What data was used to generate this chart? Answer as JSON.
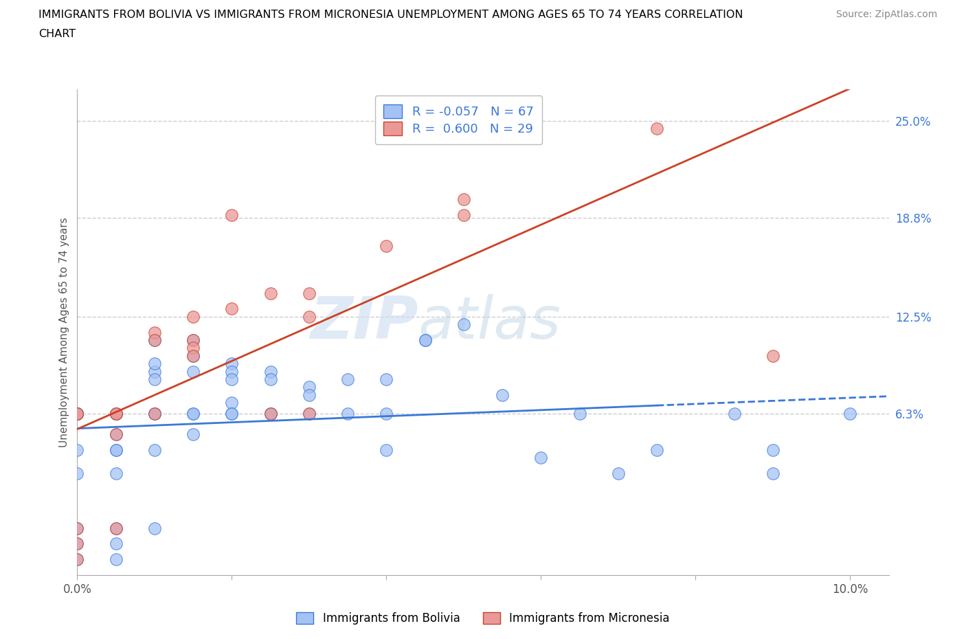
{
  "title_line1": "IMMIGRANTS FROM BOLIVIA VS IMMIGRANTS FROM MICRONESIA UNEMPLOYMENT AMONG AGES 65 TO 74 YEARS CORRELATION",
  "title_line2": "CHART",
  "source_text": "Source: ZipAtlas.com",
  "ylabel": "Unemployment Among Ages 65 to 74 years",
  "xlim": [
    0.0,
    0.105
  ],
  "ylim": [
    -0.04,
    0.27
  ],
  "xticks": [
    0.0,
    0.02,
    0.04,
    0.06,
    0.08,
    0.1
  ],
  "xticklabels": [
    "0.0%",
    "",
    "",
    "",
    "",
    "10.0%"
  ],
  "yticks_right": [
    0.063,
    0.125,
    0.188,
    0.25
  ],
  "ytickslabels_right": [
    "6.3%",
    "12.5%",
    "18.8%",
    "25.0%"
  ],
  "legend_R1": "-0.057",
  "legend_N1": "67",
  "legend_R2": "0.600",
  "legend_N2": "29",
  "color_bolivia": "#a4c2f4",
  "color_micronesia": "#ea9999",
  "trendline_color_bolivia": "#3c78d8",
  "trendline_color_micronesia": "#cc4125",
  "watermark_zip": "ZIP",
  "watermark_atlas": "atlas",
  "bolivia_x": [
    0.0,
    0.0,
    0.0,
    0.0,
    0.0,
    0.0,
    0.0,
    0.0,
    0.0,
    0.0,
    0.0,
    0.0,
    0.0,
    0.005,
    0.005,
    0.005,
    0.005,
    0.005,
    0.005,
    0.005,
    0.005,
    0.005,
    0.005,
    0.01,
    0.01,
    0.01,
    0.01,
    0.01,
    0.01,
    0.01,
    0.01,
    0.015,
    0.015,
    0.015,
    0.015,
    0.015,
    0.015,
    0.02,
    0.02,
    0.02,
    0.02,
    0.02,
    0.02,
    0.025,
    0.025,
    0.025,
    0.025,
    0.03,
    0.03,
    0.03,
    0.035,
    0.035,
    0.04,
    0.04,
    0.04,
    0.045,
    0.045,
    0.05,
    0.055,
    0.06,
    0.065,
    0.07,
    0.075,
    0.085,
    0.09,
    0.09,
    0.1
  ],
  "bolivia_y": [
    0.063,
    0.063,
    0.063,
    0.063,
    0.063,
    0.04,
    0.025,
    -0.01,
    -0.02,
    -0.03,
    0.063,
    0.063,
    0.063,
    0.063,
    0.063,
    0.063,
    0.05,
    0.04,
    0.04,
    -0.01,
    -0.02,
    -0.03,
    0.025,
    0.11,
    0.09,
    0.095,
    0.085,
    0.063,
    0.063,
    -0.01,
    0.04,
    0.11,
    0.1,
    0.09,
    0.063,
    0.05,
    0.063,
    0.095,
    0.09,
    0.085,
    0.07,
    0.063,
    0.063,
    0.09,
    0.085,
    0.063,
    0.063,
    0.08,
    0.075,
    0.063,
    0.085,
    0.063,
    0.085,
    0.063,
    0.04,
    0.11,
    0.11,
    0.12,
    0.075,
    0.035,
    0.063,
    0.025,
    0.04,
    0.063,
    0.025,
    0.04,
    0.063
  ],
  "micronesia_x": [
    0.0,
    0.0,
    0.0,
    0.0,
    0.0,
    0.005,
    0.005,
    0.005,
    0.005,
    0.01,
    0.01,
    0.01,
    0.015,
    0.015,
    0.015,
    0.015,
    0.02,
    0.02,
    0.025,
    0.025,
    0.03,
    0.03,
    0.03,
    0.04,
    0.05,
    0.05,
    0.055,
    0.075,
    0.09
  ],
  "micronesia_y": [
    0.063,
    0.063,
    -0.01,
    -0.02,
    -0.03,
    0.063,
    0.063,
    0.05,
    -0.01,
    0.115,
    0.11,
    0.063,
    0.125,
    0.11,
    0.105,
    0.1,
    0.19,
    0.13,
    0.14,
    0.063,
    0.063,
    0.14,
    0.125,
    0.17,
    0.2,
    0.19,
    0.24,
    0.245,
    0.1
  ],
  "grid_color": "#cccccc",
  "background_color": "#ffffff"
}
